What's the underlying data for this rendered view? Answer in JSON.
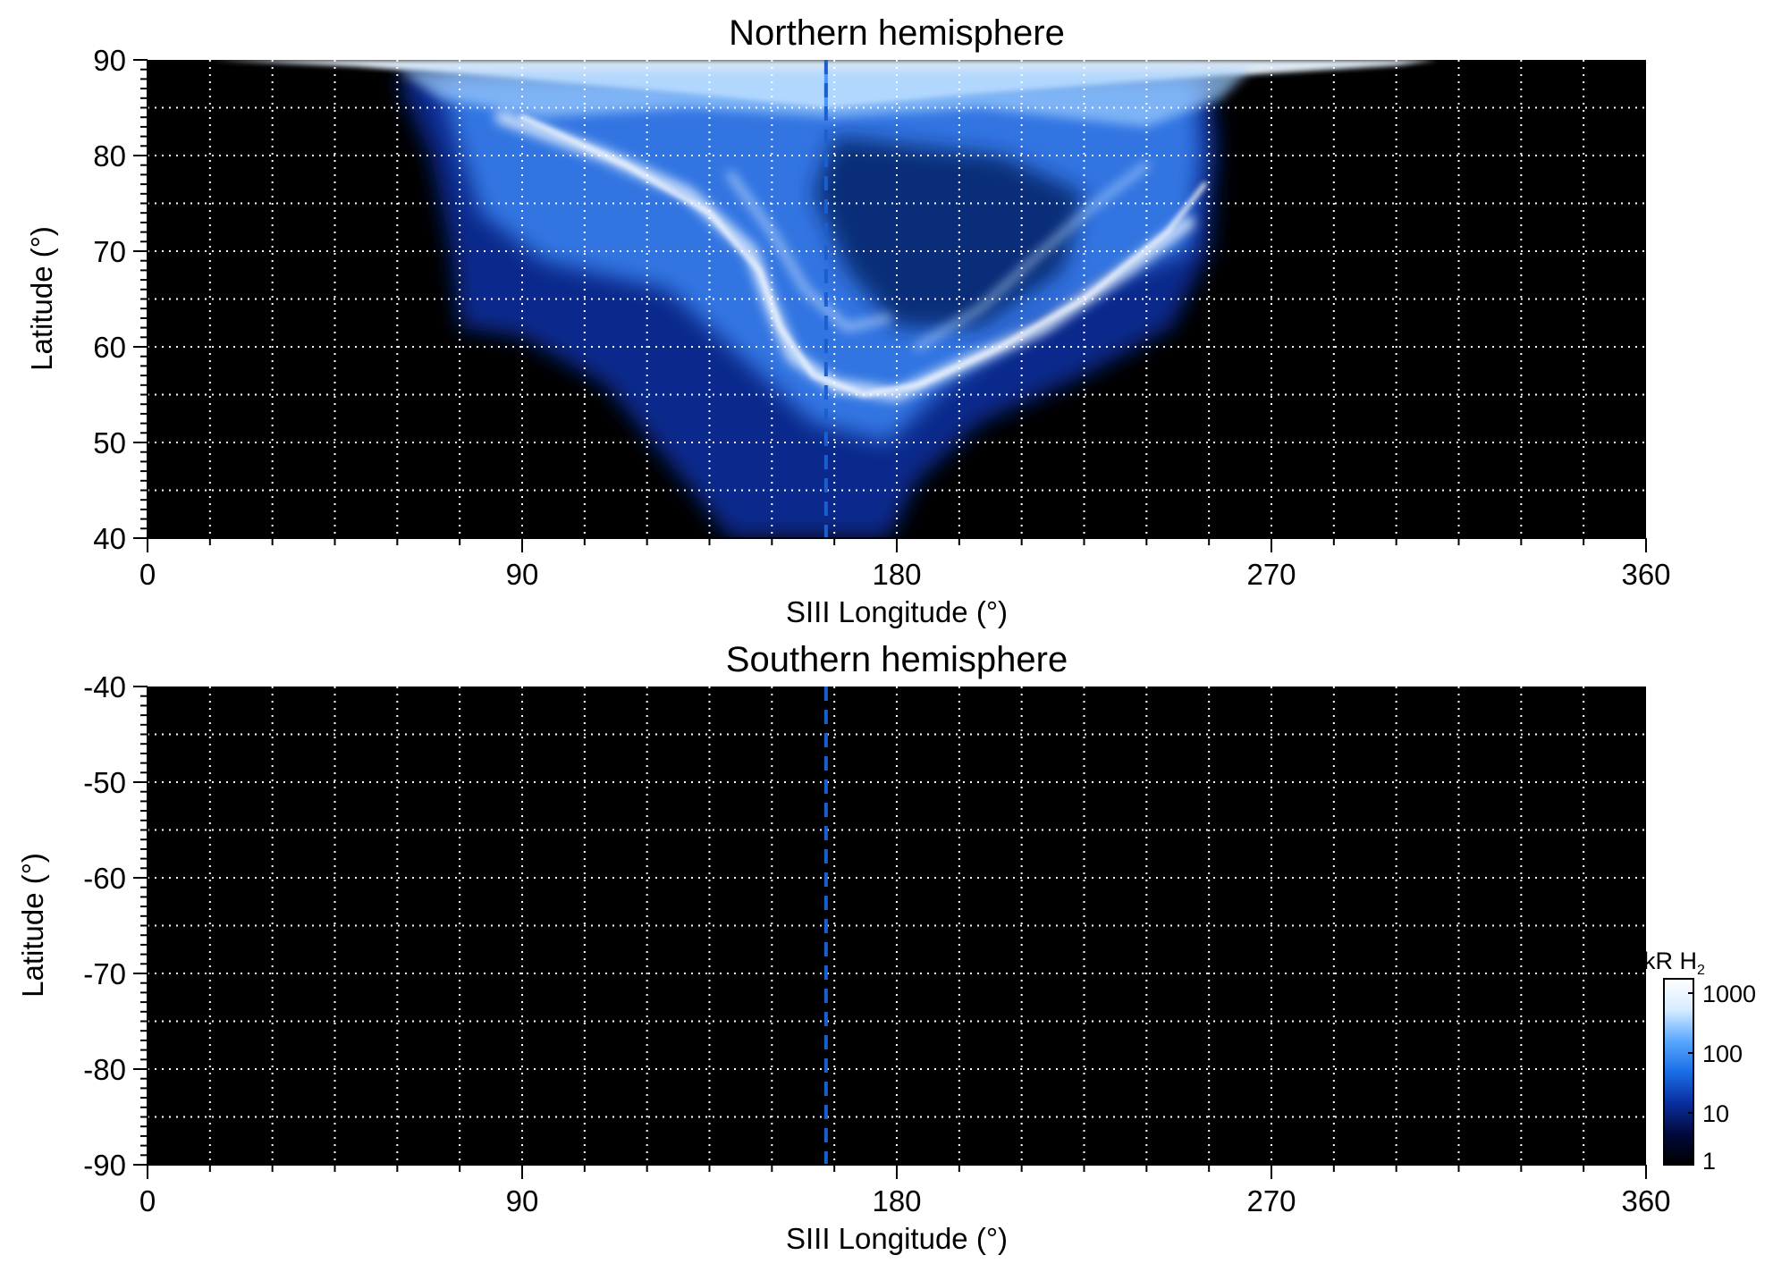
{
  "chart_data": [
    {
      "type": "heatmap",
      "title": "Northern hemisphere",
      "xlabel": "SIII Longitude (°)",
      "ylabel": "Latitude (°)",
      "xlim": [
        0,
        360
      ],
      "ylim": [
        40,
        90
      ],
      "x_ticks": [
        0,
        90,
        180,
        270,
        360
      ],
      "y_ticks": [
        40,
        50,
        60,
        70,
        80,
        90
      ],
      "x_grid_step": 15,
      "y_grid_step": 5,
      "grid": true,
      "background": "#000000",
      "dashed_meridian_longitude": 163,
      "emission_region": {
        "lon_range": [
          15,
          310
        ],
        "lat_min": 40,
        "brightest_features": "main oval and polar emissions, peak ~1000 kR"
      }
    },
    {
      "type": "heatmap",
      "title": "Southern hemisphere",
      "xlabel": "SIII Longitude (°)",
      "ylabel": "Latitude (°)",
      "xlim": [
        0,
        360
      ],
      "ylim": [
        -90,
        -40
      ],
      "x_ticks": [
        0,
        90,
        180,
        270,
        360
      ],
      "y_ticks": [
        -90,
        -80,
        -70,
        -60,
        -50,
        -40
      ],
      "x_grid_step": 15,
      "y_grid_step": 5,
      "grid": true,
      "background": "#000000",
      "dashed_meridian_longitude": 163
    }
  ],
  "colorbar": {
    "unit": "kR H",
    "unit_subscript": "2",
    "scale": "log",
    "ticks": [
      "1",
      "10",
      "100",
      "1000"
    ],
    "colors": [
      "#000000",
      "#000a3c",
      "#0a2ea0",
      "#1a6ee6",
      "#5aa8ff",
      "#d6ecff",
      "#ffffff"
    ]
  },
  "colors": {
    "grid": "#ffffff",
    "meridian": "#1a5fd0",
    "emission_core": "#e8f4ff",
    "emission_mid": "#3f8fff",
    "emission_low": "#0a2e9c"
  }
}
